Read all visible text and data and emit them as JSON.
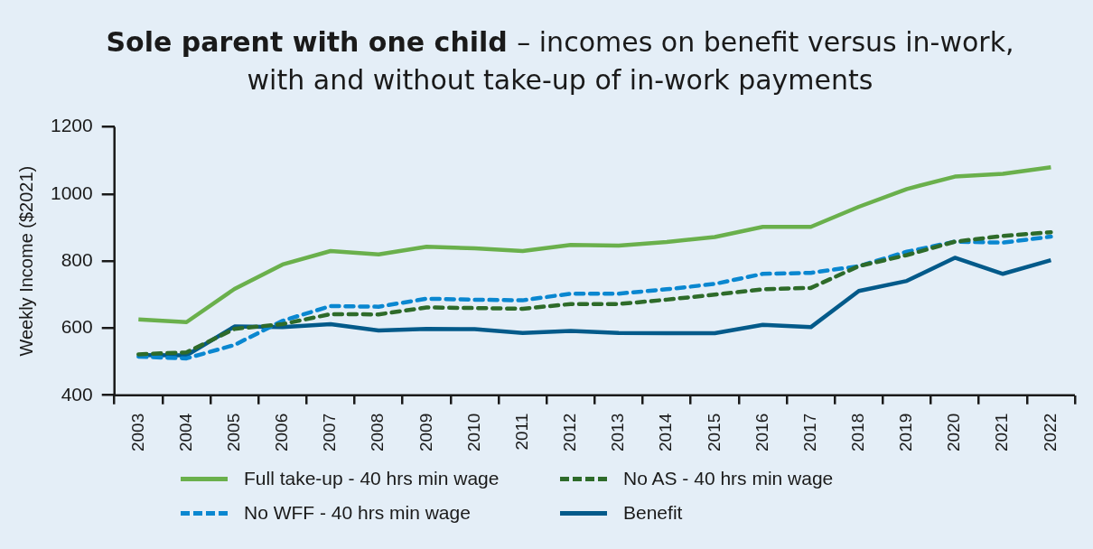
{
  "chart_data": {
    "type": "line",
    "title": "Sole parent with one child – incomes on benefit versus in-work, with and without take-up of in-work payments",
    "ylabel": "Weekly Income ($2021)",
    "categories": [
      "2003",
      "2004",
      "2005",
      "2006",
      "2007",
      "2008",
      "2009",
      "2010",
      "2011",
      "2012",
      "2013",
      "2014",
      "2015",
      "2016",
      "2017",
      "2018",
      "2019",
      "2020",
      "2021",
      "2022"
    ],
    "series": [
      {
        "name": "Full take-up - 40 hrs min wage",
        "color": "#6ab04c",
        "line_style": "solid",
        "values": [
          626,
          618,
          717,
          790,
          830,
          820,
          843,
          838,
          830,
          848,
          846,
          857,
          872,
          902,
          902,
          962,
          1015,
          1052,
          1060,
          1080
        ]
      },
      {
        "name": "No AS - 40 hrs min wage",
        "color": "#2e6b2a",
        "line_style": "dashed",
        "values": [
          522,
          528,
          598,
          612,
          642,
          641,
          662,
          660,
          658,
          672,
          672,
          685,
          700,
          716,
          720,
          785,
          818,
          858,
          875,
          886
        ]
      },
      {
        "name": "No WFF - 40 hrs min wage",
        "color": "#0a87d0",
        "line_style": "dashed",
        "values": [
          515,
          510,
          550,
          622,
          666,
          664,
          688,
          685,
          683,
          703,
          703,
          716,
          732,
          762,
          765,
          785,
          828,
          858,
          855,
          873
        ]
      },
      {
        "name": "Benefit",
        "color": "#035a8a",
        "line_style": "solid",
        "values": [
          520,
          519,
          605,
          603,
          612,
          593,
          598,
          597,
          586,
          592,
          586,
          585,
          585,
          610,
          603,
          711,
          741,
          810,
          762,
          803
        ]
      }
    ],
    "ylim": [
      400,
      1200
    ],
    "yticks": [
      400,
      600,
      800,
      1000,
      1200
    ],
    "grid": false,
    "legend": "bottom",
    "marker": "none"
  }
}
